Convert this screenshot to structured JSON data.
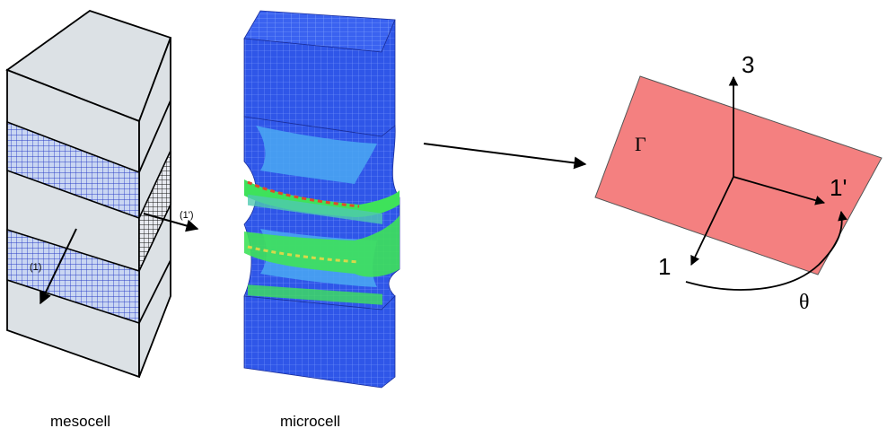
{
  "labels": {
    "mesocell": "mesocell",
    "microcell": "microcell",
    "mesocell_axis_1prime": "(1')",
    "mesocell_axis_1": "(1)",
    "plane_symbol": "Γ",
    "axis_3": "3",
    "axis_1prime": "1'",
    "axis_1": "1",
    "angle": "θ"
  },
  "colors": {
    "mesocell_face": "#dce1e5",
    "mesocell_outline": "#000000",
    "mesh_fill": "#c9d6f2",
    "mesh_line": "#2a3fc7",
    "microcell_blue": "#2f56e8",
    "microcell_light": "#49a8f0",
    "microcell_green": "#3ee25a",
    "microcell_yellow": "#d8d84a",
    "microcell_red": "#e04a2a",
    "plane_fill": "#f48080",
    "arrow": "#000000"
  }
}
